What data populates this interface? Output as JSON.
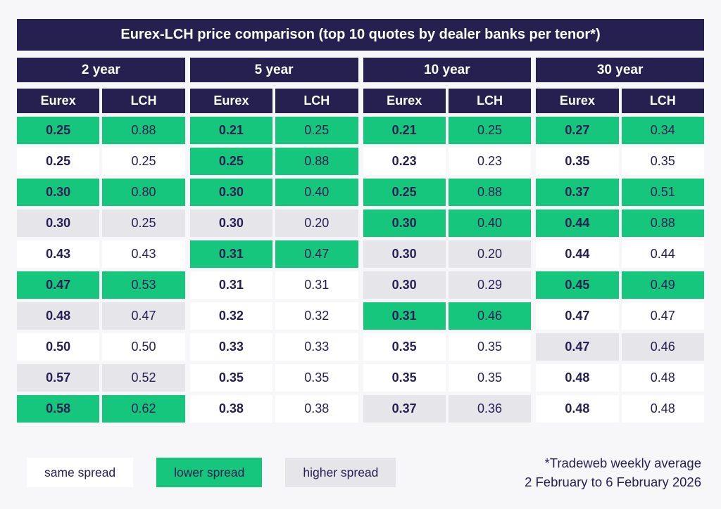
{
  "colors": {
    "navy_header": "#262051",
    "green_lower_spread": "#16c67c",
    "gray_higher_spread": "#e6e5e9",
    "white_same_spread": "#ffffff",
    "page_background": "#f7f7f9",
    "text": "#251f53"
  },
  "chart_data": {
    "type": "table",
    "title": "Eurex-LCH price comparison (top 10 quotes by dealer banks per tenor*)",
    "legend_note": "cell color encodes Eurex spread vs LCH: lower / same / higher",
    "groups": [
      {
        "tenor": "2 year",
        "columns": [
          "Eurex",
          "LCH"
        ],
        "rows": [
          {
            "eurex": "0.25",
            "lch": "0.88",
            "spread": "lower"
          },
          {
            "eurex": "0.25",
            "lch": "0.25",
            "spread": "same"
          },
          {
            "eurex": "0.30",
            "lch": "0.80",
            "spread": "lower"
          },
          {
            "eurex": "0.30",
            "lch": "0.25",
            "spread": "higher"
          },
          {
            "eurex": "0.43",
            "lch": "0.43",
            "spread": "same"
          },
          {
            "eurex": "0.47",
            "lch": "0.53",
            "spread": "lower"
          },
          {
            "eurex": "0.48",
            "lch": "0.47",
            "spread": "higher"
          },
          {
            "eurex": "0.50",
            "lch": "0.50",
            "spread": "same"
          },
          {
            "eurex": "0.57",
            "lch": "0.52",
            "spread": "higher"
          },
          {
            "eurex": "0.58",
            "lch": "0.62",
            "spread": "lower"
          }
        ]
      },
      {
        "tenor": "5 year",
        "columns": [
          "Eurex",
          "LCH"
        ],
        "rows": [
          {
            "eurex": "0.21",
            "lch": "0.25",
            "spread": "lower"
          },
          {
            "eurex": "0.25",
            "lch": "0.88",
            "spread": "lower"
          },
          {
            "eurex": "0.30",
            "lch": "0.40",
            "spread": "lower"
          },
          {
            "eurex": "0.30",
            "lch": "0.20",
            "spread": "higher"
          },
          {
            "eurex": "0.31",
            "lch": "0.47",
            "spread": "lower"
          },
          {
            "eurex": "0.31",
            "lch": "0.31",
            "spread": "same"
          },
          {
            "eurex": "0.32",
            "lch": "0.32",
            "spread": "same"
          },
          {
            "eurex": "0.33",
            "lch": "0.33",
            "spread": "same"
          },
          {
            "eurex": "0.35",
            "lch": "0.35",
            "spread": "same"
          },
          {
            "eurex": "0.38",
            "lch": "0.38",
            "spread": "same"
          }
        ]
      },
      {
        "tenor": "10 year",
        "columns": [
          "Eurex",
          "LCH"
        ],
        "rows": [
          {
            "eurex": "0.21",
            "lch": "0.25",
            "spread": "lower"
          },
          {
            "eurex": "0.23",
            "lch": "0.23",
            "spread": "same"
          },
          {
            "eurex": "0.25",
            "lch": "0.88",
            "spread": "lower"
          },
          {
            "eurex": "0.30",
            "lch": "0.40",
            "spread": "lower"
          },
          {
            "eurex": "0.30",
            "lch": "0.20",
            "spread": "higher"
          },
          {
            "eurex": "0.30",
            "lch": "0.29",
            "spread": "higher"
          },
          {
            "eurex": "0.31",
            "lch": "0.46",
            "spread": "lower"
          },
          {
            "eurex": "0.35",
            "lch": "0.35",
            "spread": "same"
          },
          {
            "eurex": "0.35",
            "lch": "0.35",
            "spread": "same"
          },
          {
            "eurex": "0.37",
            "lch": "0.36",
            "spread": "higher"
          }
        ]
      },
      {
        "tenor": "30 year",
        "columns": [
          "Eurex",
          "LCH"
        ],
        "rows": [
          {
            "eurex": "0.27",
            "lch": "0.34",
            "spread": "lower"
          },
          {
            "eurex": "0.35",
            "lch": "0.35",
            "spread": "same"
          },
          {
            "eurex": "0.37",
            "lch": "0.51",
            "spread": "lower"
          },
          {
            "eurex": "0.44",
            "lch": "0.88",
            "spread": "lower"
          },
          {
            "eurex": "0.44",
            "lch": "0.44",
            "spread": "same"
          },
          {
            "eurex": "0.45",
            "lch": "0.49",
            "spread": "lower"
          },
          {
            "eurex": "0.47",
            "lch": "0.47",
            "spread": "same"
          },
          {
            "eurex": "0.47",
            "lch": "0.46",
            "spread": "higher"
          },
          {
            "eurex": "0.48",
            "lch": "0.48",
            "spread": "same"
          },
          {
            "eurex": "0.48",
            "lch": "0.48",
            "spread": "same"
          }
        ]
      }
    ],
    "legend": [
      {
        "label": "same spread",
        "spread": "same"
      },
      {
        "label": "lower spread",
        "spread": "lower"
      },
      {
        "label": "higher spread",
        "spread": "higher"
      }
    ],
    "footnote_line1": "*Tradeweb weekly average",
    "footnote_line2": "2 February to 6 February 2026"
  }
}
